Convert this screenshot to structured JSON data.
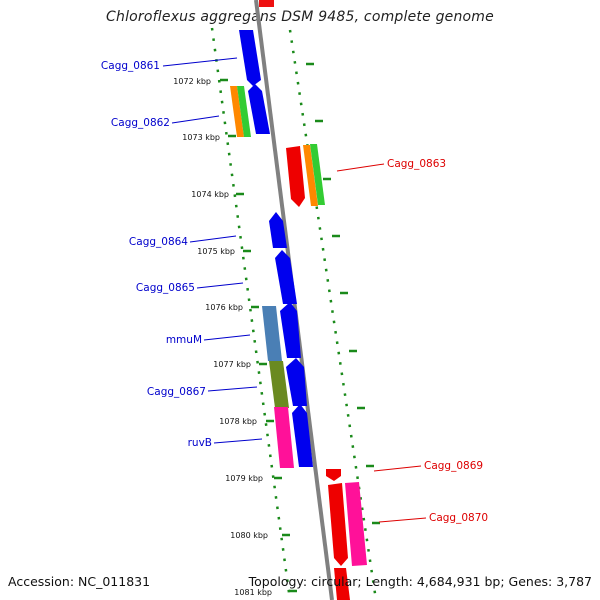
{
  "title": "Chloroflexus aggregans DSM 9485, complete genome",
  "accession": "Accession: NC_011831",
  "summary": "Topology: circular; Length: 4,684,931 bp; Genes: 3,787",
  "colors": {
    "forward_label": "#0000cc",
    "reverse_label": "#dd0000",
    "tick": "#1a8a1a",
    "backbone": "#808080"
  },
  "scale_labels": [
    "1072 kbp",
    "1073 kbp",
    "1074 kbp",
    "1075 kbp",
    "1076 kbp",
    "1077 kbp",
    "1078 kbp",
    "1079 kbp",
    "1080 kbp",
    "1081 kbp"
  ],
  "forward_genes": [
    "Cagg_0861",
    "Cagg_0862",
    "Cagg_0864",
    "Cagg_0865",
    "mmuM",
    "Cagg_0867",
    "ruvB"
  ],
  "reverse_genes": [
    "Cagg_0863",
    "Cagg_0869",
    "Cagg_0870"
  ]
}
